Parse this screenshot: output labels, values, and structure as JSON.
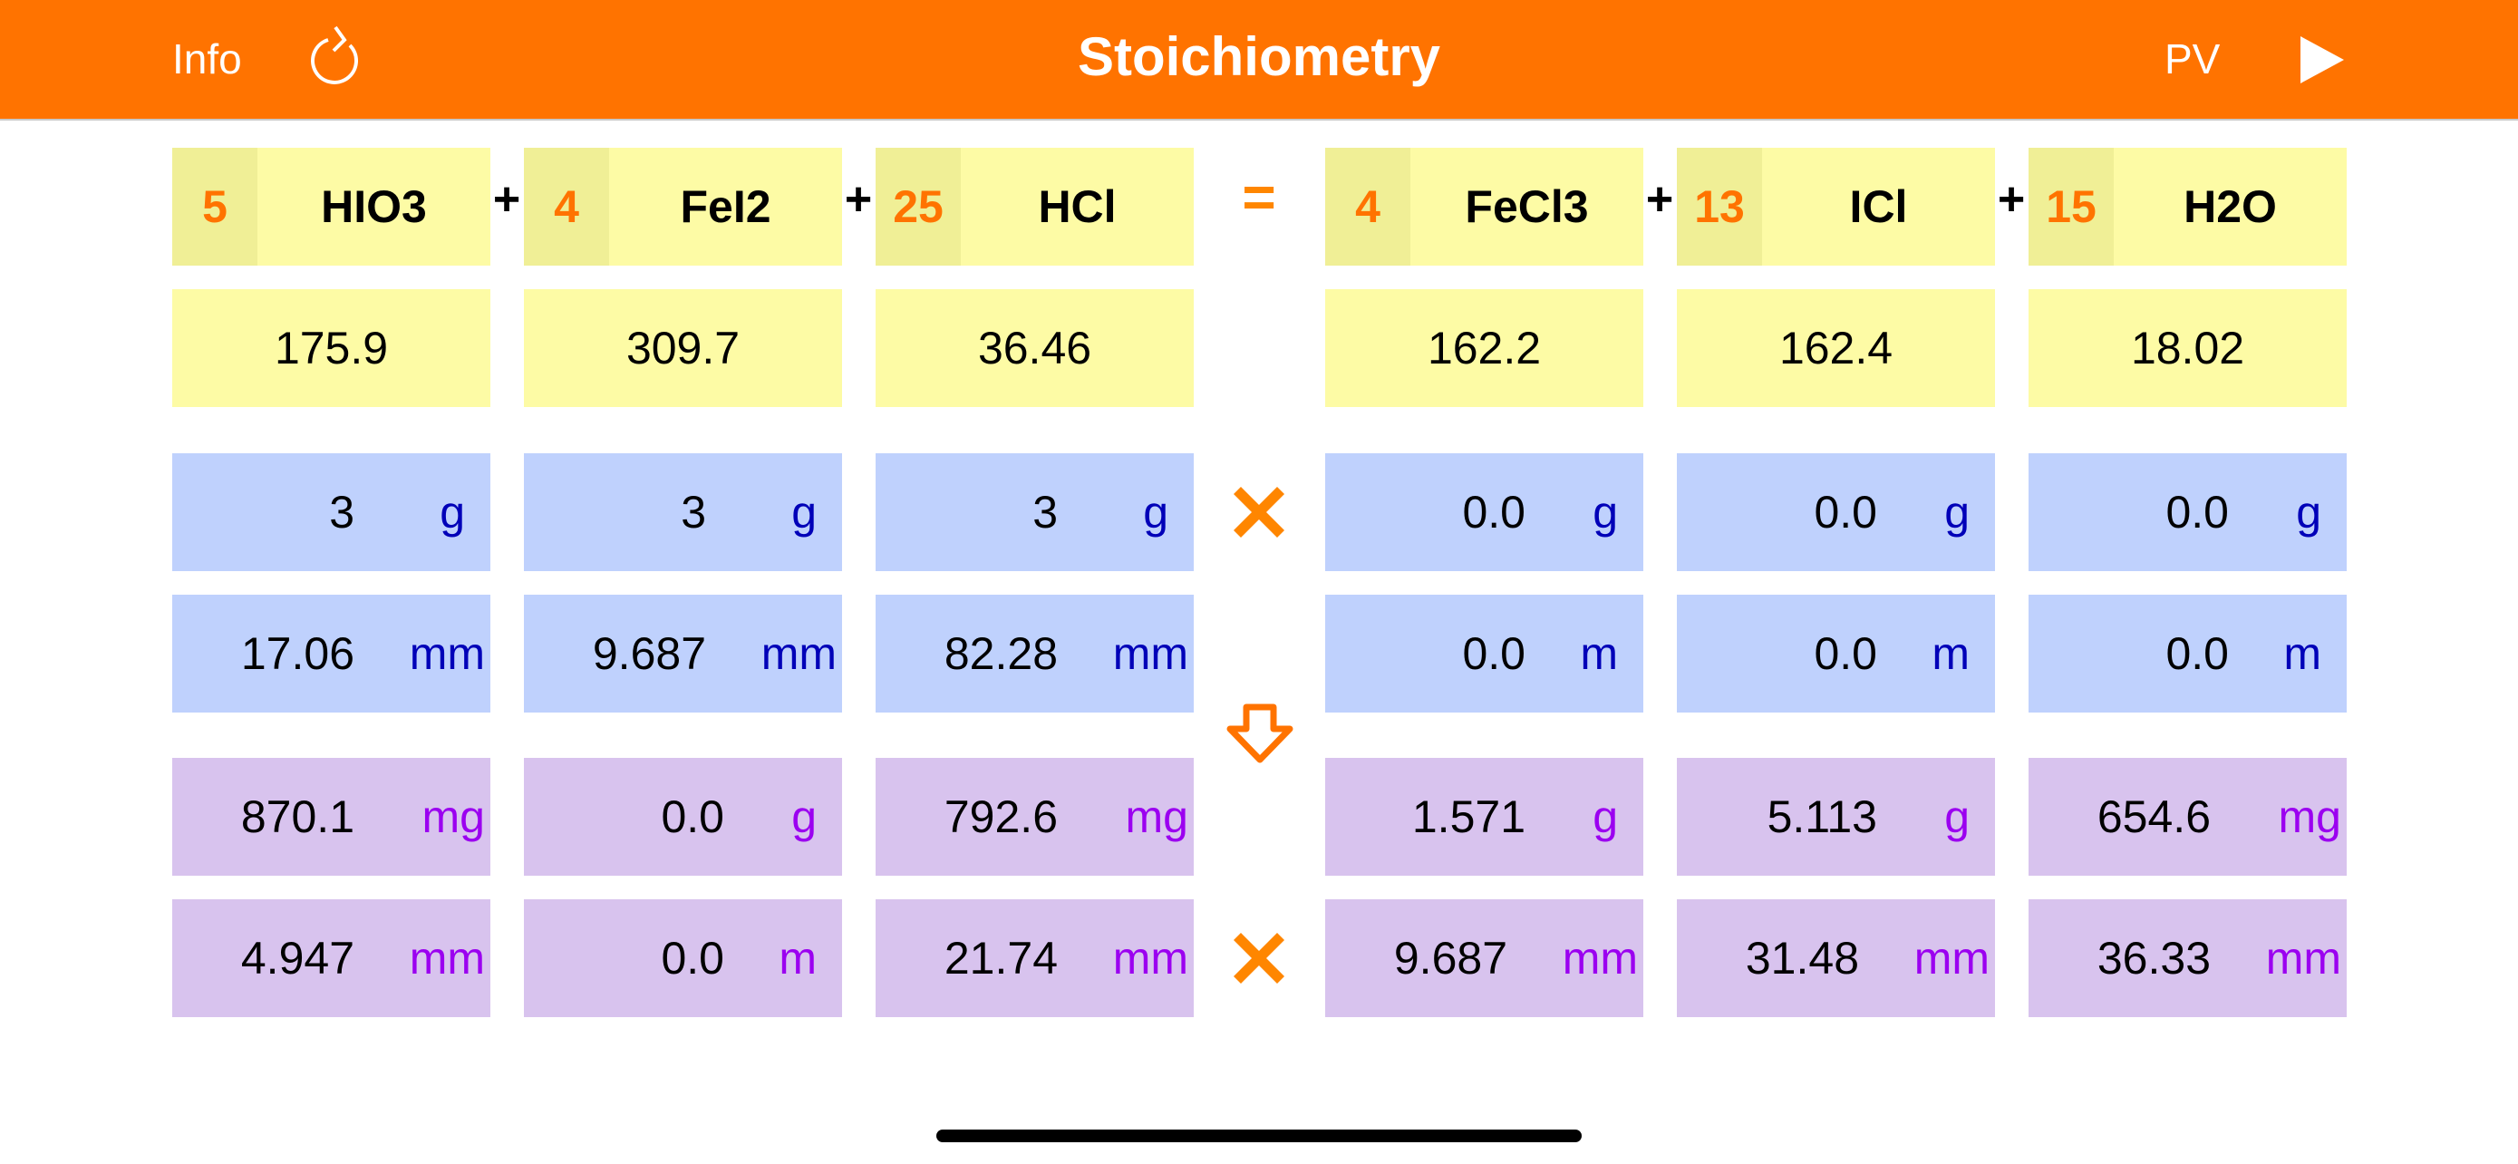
{
  "header": {
    "title": "Stoichiometry",
    "info_label": "Info",
    "pv_label": "PV",
    "refresh_icon": "refresh-icon",
    "play_icon": "play-icon",
    "color": "#FF7300"
  },
  "equation": {
    "plus": "+",
    "equals": "=",
    "reactants": [
      {
        "coef": "5",
        "formula": "HIO3",
        "molar_mass": "175.9",
        "input_mass": "3",
        "input_mass_unit": "g",
        "input_moles": "17.06",
        "input_moles_unit": "mm",
        "result_mass": "870.1",
        "result_mass_unit": "mg",
        "result_moles": "4.947",
        "result_moles_unit": "mm"
      },
      {
        "coef": "4",
        "formula": "FeI2",
        "molar_mass": "309.7",
        "input_mass": "3",
        "input_mass_unit": "g",
        "input_moles": "9.687",
        "input_moles_unit": "mm",
        "result_mass": "0.0",
        "result_mass_unit": "g",
        "result_moles": "0.0",
        "result_moles_unit": "m"
      },
      {
        "coef": "25",
        "formula": "HCl",
        "molar_mass": "36.46",
        "input_mass": "3",
        "input_mass_unit": "g",
        "input_moles": "82.28",
        "input_moles_unit": "mm",
        "result_mass": "792.6",
        "result_mass_unit": "mg",
        "result_moles": "21.74",
        "result_moles_unit": "mm"
      }
    ],
    "products": [
      {
        "coef": "4",
        "formula": "FeCl3",
        "molar_mass": "162.2",
        "input_mass": "0.0",
        "input_mass_unit": "g",
        "input_moles": "0.0",
        "input_moles_unit": "m",
        "result_mass": "1.571",
        "result_mass_unit": "g",
        "result_moles": "9.687",
        "result_moles_unit": "mm"
      },
      {
        "coef": "13",
        "formula": "ICl",
        "molar_mass": "162.4",
        "input_mass": "0.0",
        "input_mass_unit": "g",
        "input_moles": "0.0",
        "input_moles_unit": "m",
        "result_mass": "5.113",
        "result_mass_unit": "g",
        "result_moles": "31.48",
        "result_moles_unit": "mm"
      },
      {
        "coef": "15",
        "formula": "H2O",
        "molar_mass": "18.02",
        "input_mass": "0.0",
        "input_mass_unit": "g",
        "input_moles": "0.0",
        "input_moles_unit": "m",
        "result_mass": "654.6",
        "result_mass_unit": "mg",
        "result_moles": "36.33",
        "result_moles_unit": "mm"
      }
    ]
  },
  "controls": {
    "clear_inputs_icon": "x-mark-icon",
    "calculate_icon": "down-arrow-icon",
    "clear_results_icon": "x-mark-icon",
    "accent": "#FF8600"
  },
  "colors": {
    "formula_bg": "#FDFBA5",
    "coef_bg": "#F0EF96",
    "input_bg": "#BFD1FD",
    "result_bg": "#D8C3EE",
    "input_unit": "#0000B8",
    "result_unit": "#9B00F0"
  }
}
